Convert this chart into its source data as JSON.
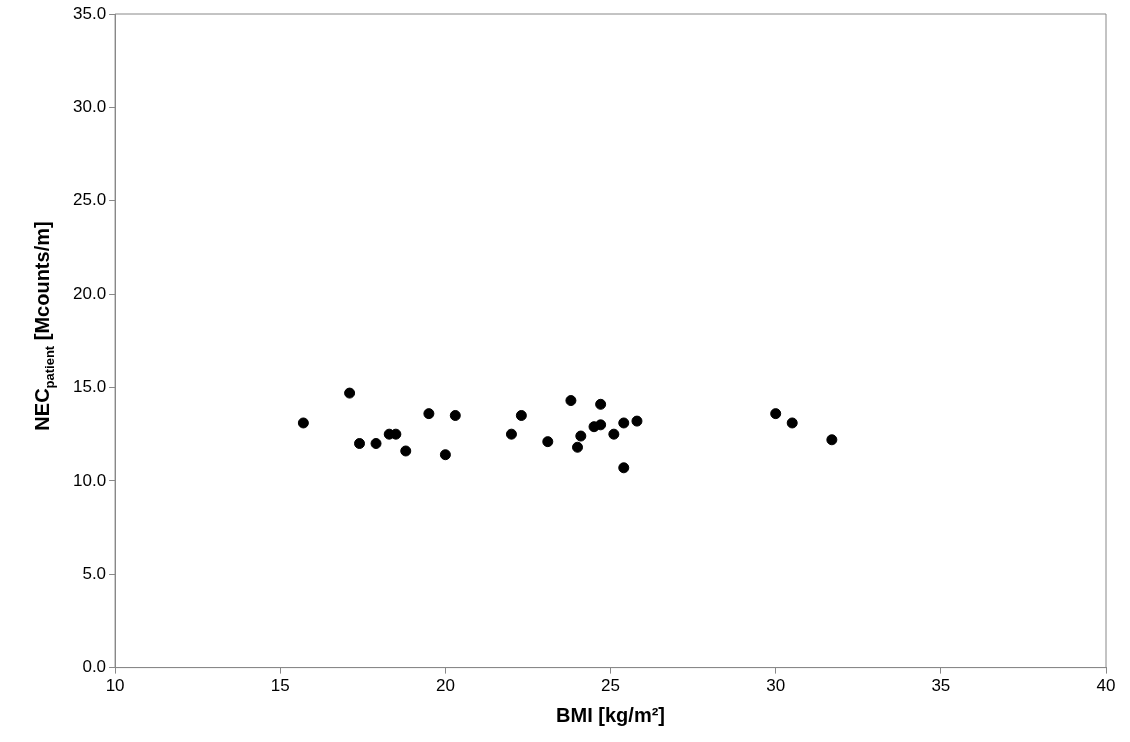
{
  "chart_data": {
    "type": "scatter",
    "xlabel": "BMI [kg/m²]",
    "ylabel": "NEC$_{patient}$ [Mcounts/m]",
    "x": [
      15.7,
      17.1,
      17.4,
      17.9,
      18.3,
      18.5,
      18.8,
      19.5,
      20.0,
      20.3,
      22.0,
      22.3,
      23.1,
      23.8,
      24.0,
      24.1,
      24.5,
      24.7,
      24.7,
      25.1,
      25.4,
      25.4,
      25.8,
      30.0,
      30.5,
      31.7
    ],
    "series": [
      {
        "color": "#000000",
        "values": [
          13.1,
          14.7,
          12.0,
          12.0,
          12.5,
          12.5,
          11.6,
          13.6,
          11.4,
          13.5,
          12.5,
          13.5,
          12.1,
          14.3,
          11.8,
          12.4,
          12.9,
          14.1,
          13.0,
          12.5,
          10.7,
          13.1,
          13.2,
          13.6,
          13.1,
          12.2
        ]
      }
    ],
    "marker": "circle",
    "grid": false,
    "legend": false,
    "xlim": [
      10,
      40
    ],
    "xticks": [
      10,
      15,
      20,
      25,
      30,
      35,
      40
    ],
    "ylim": [
      0,
      35
    ],
    "yticks": [
      {
        "value": 0,
        "label": "0.0"
      },
      {
        "value": 5,
        "label": "5.0"
      },
      {
        "value": 10,
        "label": "10.0"
      },
      {
        "value": 15,
        "label": "15.0"
      },
      {
        "value": 20,
        "label": "20.0"
      },
      {
        "value": 25,
        "label": "25.0"
      },
      {
        "value": 30,
        "label": "30.0"
      },
      {
        "value": 35,
        "label": "35.0"
      }
    ]
  }
}
